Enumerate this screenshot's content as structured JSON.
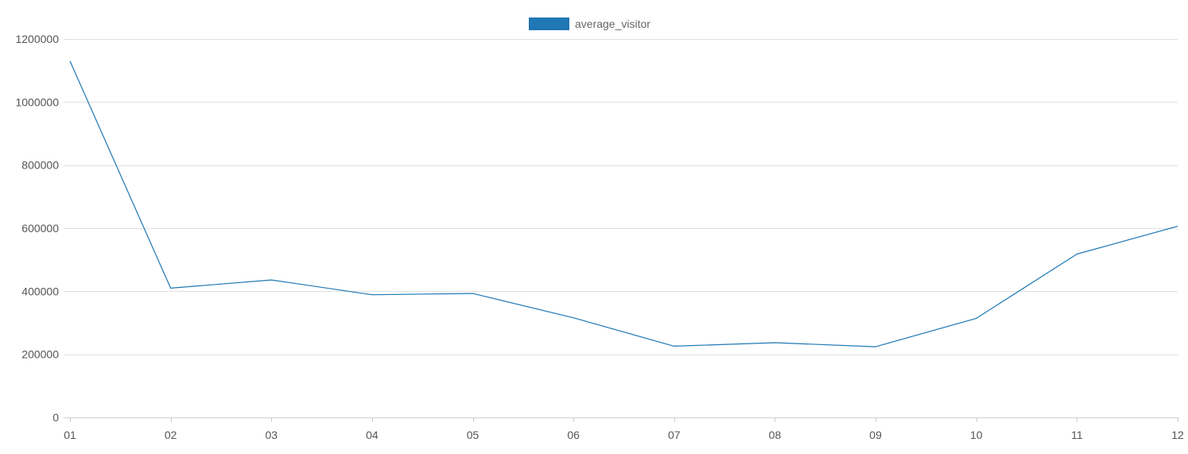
{
  "chart_data": {
    "type": "line",
    "categories": [
      "01",
      "02",
      "03",
      "04",
      "05",
      "06",
      "07",
      "08",
      "09",
      "10",
      "11",
      "12"
    ],
    "series": [
      {
        "name": "average_visitor",
        "color": "#1f77b4",
        "values": [
          1130000,
          410000,
          436000,
          389000,
          393000,
          316000,
          226000,
          237000,
          224000,
          314000,
          518000,
          606000
        ]
      }
    ],
    "ylim": [
      0,
      1200000
    ],
    "yticks": [
      0,
      200000,
      400000,
      600000,
      800000,
      1000000,
      1200000
    ],
    "grid": true,
    "legend_position": "top-center",
    "title": "",
    "xlabel": "",
    "ylabel": ""
  }
}
